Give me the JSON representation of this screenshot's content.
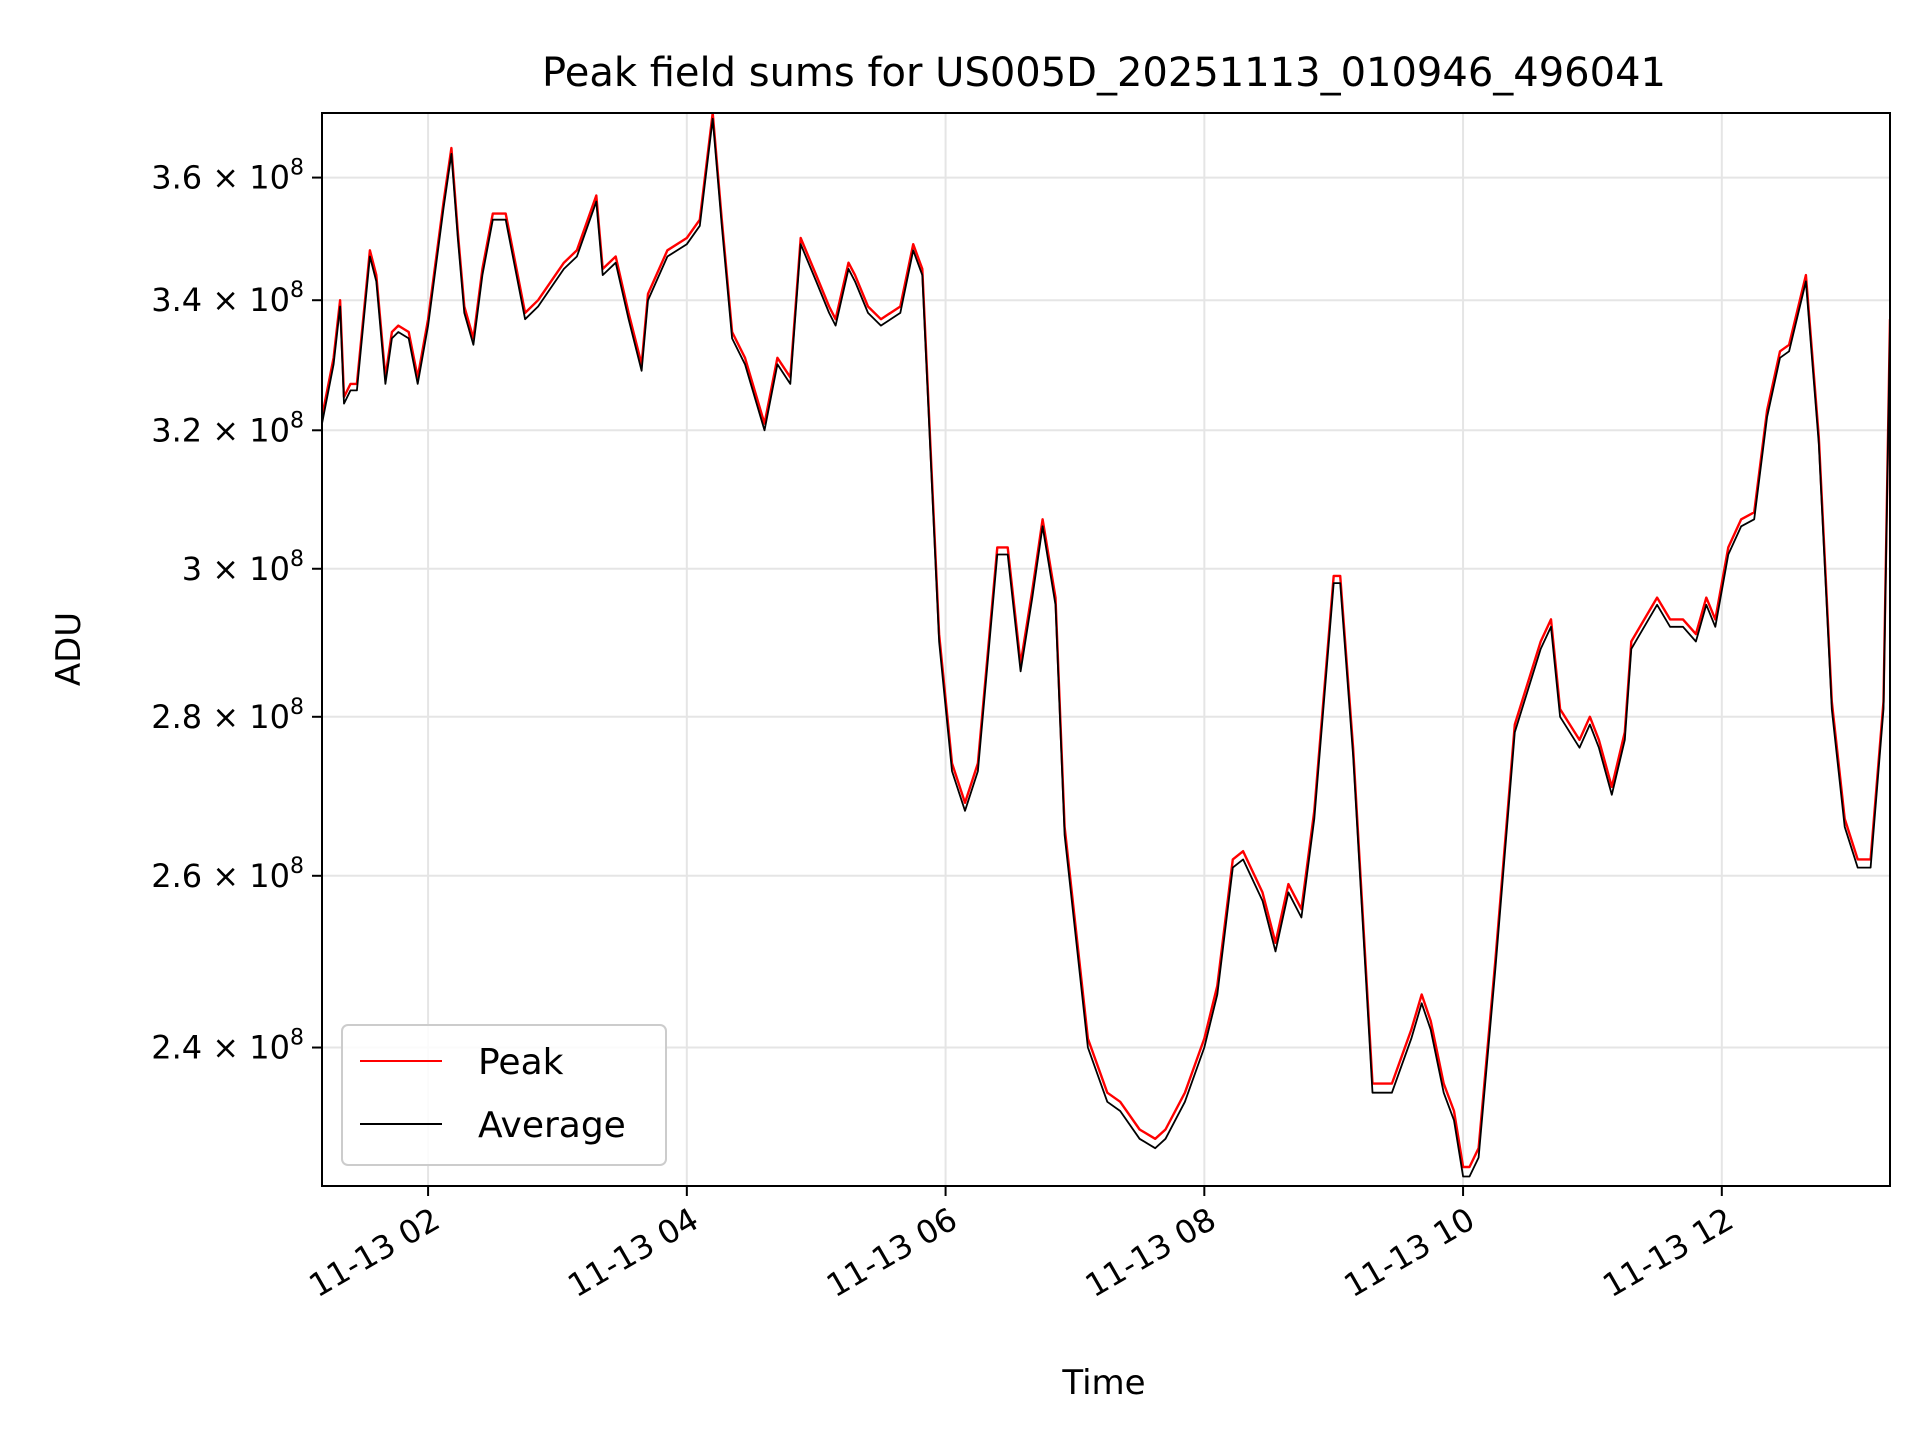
{
  "chart_data": {
    "type": "line",
    "title": "Peak field sums for US005D_20251113_010946_496041",
    "xlabel": "Time",
    "ylabel": "ADU",
    "x_tick_labels": [
      "11-13 02",
      "11-13 04",
      "11-13 06",
      "11-13 08",
      "11-13 10",
      "11-13 12"
    ],
    "x_tick_hours": [
      2,
      4,
      6,
      8,
      10,
      12
    ],
    "xlim_hours": [
      1.18,
      13.3
    ],
    "y_scale": "log",
    "ylim": [
      225000000,
      371000000
    ],
    "y_ticks": [
      {
        "value": 240000000,
        "mantissa": "2.4"
      },
      {
        "value": 260000000,
        "mantissa": "2.6"
      },
      {
        "value": 280000000,
        "mantissa": "2.8"
      },
      {
        "value": 300000000,
        "mantissa": "3"
      },
      {
        "value": 320000000,
        "mantissa": "3.2"
      },
      {
        "value": 340000000,
        "mantissa": "3.4"
      },
      {
        "value": 360000000,
        "mantissa": "3.6"
      }
    ],
    "y_tick_base": "10",
    "y_tick_exponent": "8",
    "y_tick_times": "×",
    "grid": true,
    "legend_position": "lower-left",
    "series": [
      {
        "name": "Peak",
        "color": "#ff0000"
      },
      {
        "name": "Average",
        "color": "#000000"
      }
    ],
    "x_hours": [
      1.18,
      1.27,
      1.32,
      1.35,
      1.4,
      1.45,
      1.55,
      1.6,
      1.67,
      1.72,
      1.77,
      1.85,
      1.92,
      2.0,
      2.12,
      2.18,
      2.23,
      2.28,
      2.35,
      2.42,
      2.5,
      2.6,
      2.75,
      2.85,
      2.95,
      3.05,
      3.15,
      3.3,
      3.35,
      3.45,
      3.55,
      3.65,
      3.7,
      3.85,
      4.0,
      4.1,
      4.2,
      4.27,
      4.35,
      4.45,
      4.6,
      4.7,
      4.8,
      4.88,
      5.0,
      5.1,
      5.15,
      5.25,
      5.3,
      5.4,
      5.5,
      5.65,
      5.75,
      5.82,
      5.95,
      6.05,
      6.15,
      6.25,
      6.4,
      6.48,
      6.58,
      6.67,
      6.75,
      6.85,
      6.92,
      7.1,
      7.25,
      7.35,
      7.5,
      7.62,
      7.7,
      7.85,
      8.0,
      8.1,
      8.22,
      8.3,
      8.45,
      8.55,
      8.65,
      8.75,
      8.85,
      9.0,
      9.05,
      9.15,
      9.3,
      9.45,
      9.6,
      9.68,
      9.75,
      9.85,
      9.93,
      10.0,
      10.05,
      10.12,
      10.25,
      10.4,
      10.6,
      10.68,
      10.75,
      10.9,
      10.98,
      11.05,
      11.15,
      11.25,
      11.3,
      11.5,
      11.6,
      11.7,
      11.8,
      11.88,
      11.95,
      12.05,
      12.15,
      12.25,
      12.35,
      12.45,
      12.52,
      12.65,
      12.75,
      12.85,
      12.95,
      13.05,
      13.15,
      13.25,
      13.3
    ],
    "average_values": [
      321000000,
      330000000,
      339000000,
      324000000,
      326000000,
      326000000,
      347000000,
      343000000,
      327000000,
      334000000,
      335000000,
      334000000,
      327000000,
      336000000,
      355000000,
      364000000,
      350000000,
      338000000,
      333000000,
      344000000,
      353000000,
      353000000,
      337000000,
      339000000,
      342000000,
      345000000,
      347000000,
      356000000,
      344000000,
      346000000,
      337000000,
      329000000,
      340000000,
      347000000,
      349000000,
      352000000,
      370000000,
      352000000,
      334000000,
      330000000,
      320000000,
      330000000,
      327000000,
      349000000,
      343000000,
      338000000,
      336000000,
      345000000,
      343000000,
      338000000,
      336000000,
      338000000,
      348000000,
      344000000,
      290000000,
      273000000,
      268000000,
      273000000,
      302000000,
      302000000,
      286000000,
      296000000,
      306000000,
      295000000,
      265000000,
      240000000,
      234000000,
      233000000,
      230000000,
      229000000,
      230000000,
      234000000,
      240000000,
      246000000,
      261000000,
      262000000,
      257000000,
      251000000,
      258000000,
      255000000,
      267000000,
      298000000,
      298000000,
      275000000,
      235000000,
      235000000,
      241000000,
      245000000,
      242000000,
      235000000,
      232000000,
      226000000,
      226000000,
      228000000,
      249000000,
      278000000,
      289000000,
      292000000,
      280000000,
      276000000,
      279000000,
      276000000,
      270000000,
      277000000,
      289000000,
      295000000,
      292000000,
      292000000,
      290000000,
      295000000,
      292000000,
      302000000,
      306000000,
      307000000,
      322000000,
      331000000,
      332000000,
      343000000,
      318000000,
      281000000,
      266000000,
      261000000,
      261000000,
      281000000,
      336000000
    ],
    "peak_values": [
      322000000,
      331000000,
      340000000,
      325000000,
      327000000,
      327000000,
      348000000,
      344000000,
      328000000,
      335000000,
      336000000,
      335000000,
      328000000,
      337000000,
      356000000,
      365000000,
      351000000,
      339000000,
      334000000,
      345000000,
      354000000,
      354000000,
      338000000,
      340000000,
      343000000,
      346000000,
      348000000,
      357000000,
      345000000,
      347000000,
      338000000,
      330000000,
      341000000,
      348000000,
      350000000,
      353000000,
      371000000,
      353000000,
      335000000,
      331000000,
      321000000,
      331000000,
      328000000,
      350000000,
      344000000,
      339000000,
      337000000,
      346000000,
      344000000,
      339000000,
      337000000,
      339000000,
      349000000,
      345000000,
      291000000,
      274000000,
      269000000,
      274000000,
      303000000,
      303000000,
      287000000,
      297000000,
      307000000,
      296000000,
      266000000,
      241000000,
      235000000,
      234000000,
      231000000,
      230000000,
      231000000,
      235000000,
      241000000,
      247000000,
      262000000,
      263000000,
      258000000,
      252000000,
      259000000,
      256000000,
      268000000,
      299000000,
      299000000,
      276000000,
      236000000,
      236000000,
      242000000,
      246000000,
      243000000,
      236000000,
      233000000,
      227000000,
      227000000,
      229000000,
      250000000,
      279000000,
      290000000,
      293000000,
      281000000,
      277000000,
      280000000,
      277000000,
      271000000,
      278000000,
      290000000,
      296000000,
      293000000,
      293000000,
      291000000,
      296000000,
      293000000,
      303000000,
      307000000,
      308000000,
      323000000,
      332000000,
      333000000,
      344000000,
      319000000,
      282000000,
      267000000,
      262000000,
      262000000,
      282000000,
      337000000
    ]
  }
}
